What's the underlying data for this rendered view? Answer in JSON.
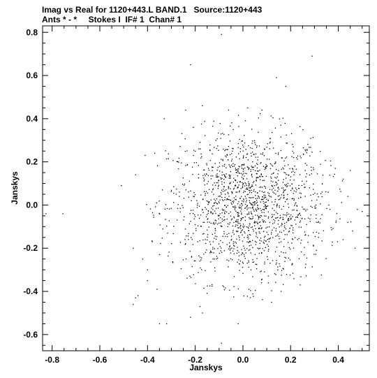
{
  "header": {
    "line1": "Imag vs Real for 1120+443.L BAND.1   Source:1120+443",
    "line2": "Ants * - *     Stokes I  IF# 1  Chan# 1"
  },
  "chart_data": {
    "type": "scatter",
    "title": "Imag vs Real for 1120+443.L BAND.1   Source:1120+443",
    "subtitle": "Ants * - *     Stokes I  IF# 1  Chan# 1",
    "xlabel": "Janskys",
    "ylabel": "Janskys",
    "xlim": [
      -0.84,
      0.53
    ],
    "ylim": [
      -0.675,
      0.83
    ],
    "xticks": [
      -0.8,
      -0.6,
      -0.4,
      -0.2,
      0.0,
      0.2,
      0.4
    ],
    "xtick_labels": [
      "-0.8",
      "-0.6",
      "-0.4",
      "-0.2",
      "0.0",
      "0.2",
      "0.4"
    ],
    "yticks": [
      -0.6,
      -0.4,
      -0.2,
      0.0,
      0.2,
      0.4,
      0.6,
      0.8
    ],
    "ytick_labels": [
      "-0.6",
      "-0.4",
      "-0.2",
      "0.0",
      "0.2",
      "0.4",
      "0.6",
      "0.8"
    ],
    "grid": false,
    "marker_color": "#000000",
    "series": [
      {
        "points": [
          [
            -0.826,
            -0.04
          ],
          [
            -0.755,
            -0.04
          ],
          [
            -0.51,
            0.09
          ],
          [
            -0.46,
            -0.2
          ],
          [
            -0.45,
            0.14
          ],
          [
            -0.44,
            -0.42
          ],
          [
            -0.46,
            -0.46
          ],
          [
            -0.42,
            -0.25
          ],
          [
            -0.41,
            0.23
          ],
          [
            -0.4,
            -0.3
          ],
          [
            -0.38,
            -0.17
          ],
          [
            -0.37,
            0.24
          ],
          [
            -0.36,
            -0.39
          ],
          [
            -0.35,
            -0.55
          ],
          [
            -0.33,
            0.4
          ],
          [
            -0.32,
            -0.55
          ],
          [
            -0.22,
            0.65
          ],
          [
            -0.22,
            -0.52
          ],
          [
            -0.18,
            -0.47
          ],
          [
            -0.17,
            -0.5
          ],
          [
            -0.09,
            0.79
          ],
          [
            -0.09,
            -0.64
          ],
          [
            -0.02,
            -0.55
          ],
          [
            0.14,
            0.59
          ],
          [
            0.18,
            0.55
          ],
          [
            0.29,
            0.69
          ],
          [
            0.45,
            0.16
          ],
          [
            0.47,
            -0.2
          ],
          [
            0.48,
            -0.02
          ],
          [
            0.5,
            -0.03
          ],
          [
            0.46,
            -0.12
          ],
          [
            0.44,
            -0.08
          ],
          [
            0.44,
            0.04
          ],
          [
            0.42,
            0.12
          ],
          [
            0.42,
            -0.16
          ],
          [
            -0.24,
            0.44
          ],
          [
            -0.17,
            0.46
          ],
          [
            -0.06,
            0.44
          ],
          [
            0.02,
            0.45
          ],
          [
            0.08,
            0.44
          ],
          [
            -0.45,
            -0.43
          ],
          [
            -0.4,
            -0.35
          ],
          [
            0.12,
            -0.45
          ],
          [
            0.16,
            -0.4
          ],
          [
            0.24,
            -0.37
          ]
        ]
      }
    ]
  }
}
